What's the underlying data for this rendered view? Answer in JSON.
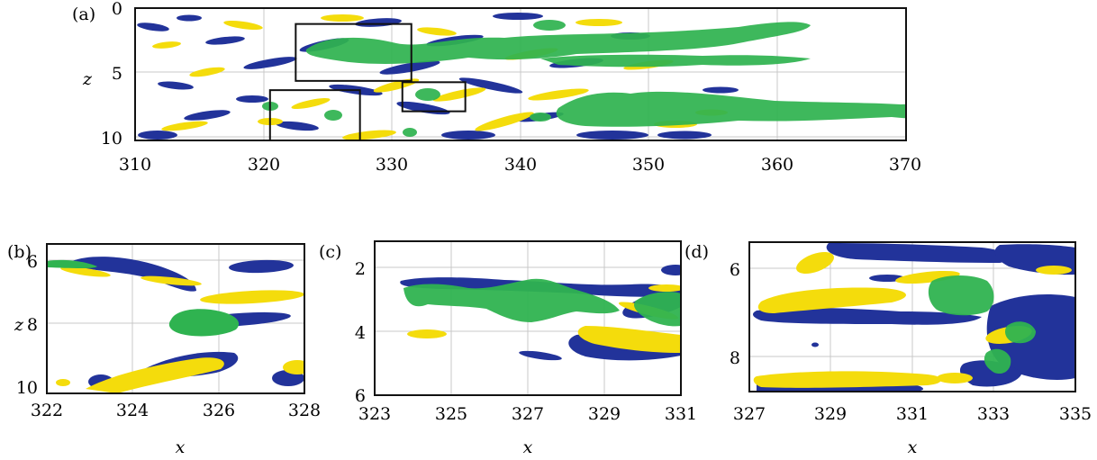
{
  "colors": {
    "green": "#2fb350",
    "blue": "#22339a",
    "yellow": "#f4dc0c"
  },
  "panels": [
    {
      "id": "a",
      "label": "(a)",
      "xticks": [
        "310",
        "320",
        "330",
        "340",
        "350",
        "360",
        "370"
      ],
      "yticks": [
        "0",
        "5",
        "10"
      ],
      "xlabel": "",
      "ylabel": "z",
      "xlim": [
        310,
        370
      ],
      "ylim": [
        0,
        10
      ],
      "insets": [
        {
          "x0": 322.5,
          "x1": 331.5,
          "z0": 1.2,
          "z1": 5.5
        },
        {
          "x0": 320.5,
          "x1": 327.5,
          "z0": 6.2,
          "z1": 10
        },
        {
          "x0": 330.8,
          "x1": 335.7,
          "z0": 5.6,
          "z1": 7.8
        }
      ]
    },
    {
      "id": "b",
      "label": "(b)",
      "xticks": [
        "322",
        "324",
        "326",
        "328"
      ],
      "yticks": [
        "6",
        "8",
        "10"
      ],
      "xlabel": "x",
      "ylabel": "z",
      "xlim": [
        322,
        328
      ],
      "ylim": [
        5.6,
        10.3
      ]
    },
    {
      "id": "c",
      "label": "(c)",
      "xticks": [
        "323",
        "325",
        "327",
        "329",
        "331"
      ],
      "yticks": [
        "2",
        "4",
        "6"
      ],
      "xlabel": "x",
      "ylabel": "",
      "xlim": [
        323,
        331
      ],
      "ylim": [
        1.2,
        6
      ]
    },
    {
      "id": "d",
      "label": "(d)",
      "xticks": [
        "327",
        "329",
        "331",
        "333",
        "335"
      ],
      "yticks": [
        "6",
        "8"
      ],
      "xlabel": "x",
      "ylabel": "",
      "xlim": [
        327,
        335
      ],
      "ylim": [
        5.6,
        9
      ]
    }
  ]
}
